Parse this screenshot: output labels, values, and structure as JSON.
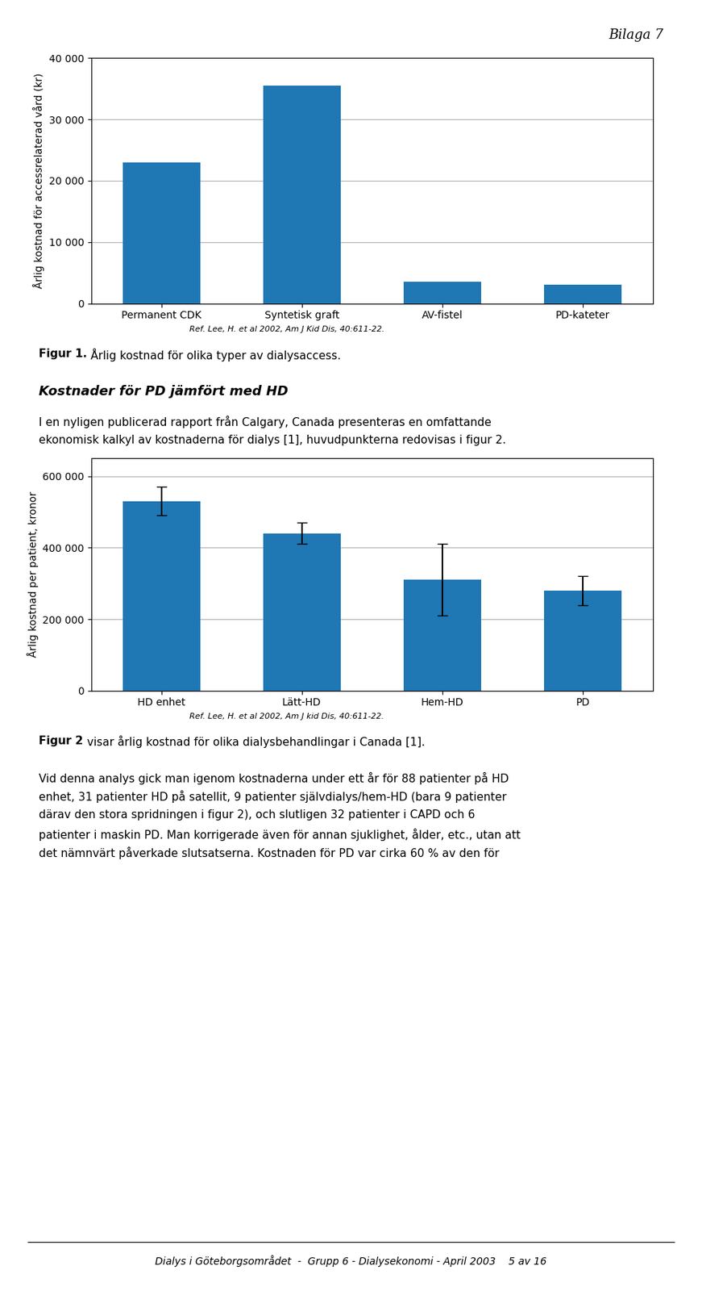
{
  "chart_data": [
    {
      "type": "bar",
      "categories": [
        "Permanent CDK",
        "Syntetisk graft",
        "AV-fistel",
        "PD-kateter"
      ],
      "values": [
        23000,
        35500,
        3500,
        3000
      ],
      "ylabel": "Årlig kostnad för accessrelaterad vård (kr)",
      "ylim": [
        0,
        40000
      ],
      "yticks": [
        0,
        {
          "value": 10000,
          "label": "10 000"
        },
        {
          "value": 20000,
          "label": "20 000"
        },
        {
          "value": 30000,
          "label": "30 000"
        },
        {
          "value": 40000,
          "label": "40 000"
        }
      ],
      "grid": true,
      "annotations": [
        "Ref. Lee, H. et al 2002, Am J Kid Dis, 40:611-22.",
        "Figur 1.",
        "Årlig kostnad för olika typer av dialysaccess.",
        "Kostnader för PD jämfört med HD",
        "I en nyligen publicerad rapport från Calgary, Canada presenteras en omfattande",
        "ekonomisk kalkyl av kostnaderna för dialys [1], huvudpunkterna redovisas i figur 2."
      ]
    },
    {
      "type": "bar",
      "categories": [
        "HD enhet",
        "Lätt-HD",
        "Hem-HD",
        "PD"
      ],
      "values": [
        530000,
        440000,
        310000,
        280000
      ],
      "errors_low": [
        40000,
        30000,
        100000,
        40000
      ],
      "errors_high": [
        40000,
        30000,
        100000,
        40000
      ],
      "ylabel": "Årlig kostnad per patient, kronor",
      "ylim": [
        0,
        650000
      ],
      "yticks": [
        0,
        {
          "value": 200000,
          "label": "200 000"
        },
        {
          "value": 400000,
          "label": "400 000"
        },
        {
          "value": 600000,
          "label": "600 000"
        }
      ],
      "grid": true,
      "annotations": [
        "Ref. Lee, H. et al 2002, Am J kid Dis, 40:611-22.",
        "Figur 2",
        "visar årlig kostnad för olika dialysbehandlingar i Canada [1].",
        "Vid denna analys gick man igenom kostnaderna under ett år för 88 patienter på HD",
        "enhet, 31 patienter HD på satellit, 9 patienter självdialys/hem-HD (bara 9 patienter",
        "därav den stora spridningen i figur 2), och slutligen 32 patienter i CAPD och 6",
        "patienter i maskin PD. Man korrigerade även för annan sjuklighet, ålder, etc., utan att",
        "det nämnvärt påverkade slutsatserna. Kostnaden för PD var cirka 60 % av den för"
      ]
    }
  ],
  "annotations": [
    "Bilaga 7",
    "Dialys i Göteborgsområdet  -  Grupp 6 - Dialysekonomi - April 2003    5 av 16"
  ]
}
